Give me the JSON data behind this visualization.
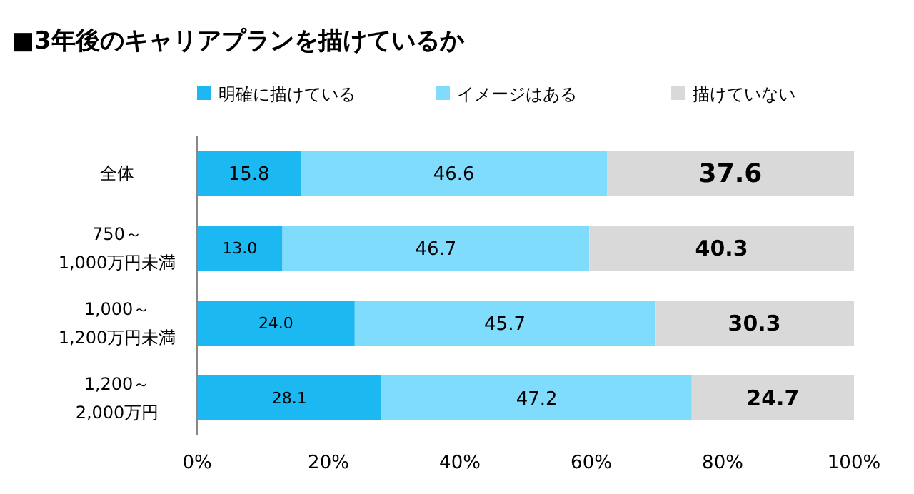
{
  "chart_data": {
    "type": "bar",
    "orientation": "horizontal",
    "stacked": true,
    "title": "■3年後のキャリアプランを描けているか",
    "categories": [
      "全体",
      "750～\n1,000万円未満",
      "1,000～\n1,200万円未満",
      "1,200～\n2,000万円"
    ],
    "series": [
      {
        "name": "明確に描けている",
        "color": "#1cb8f2",
        "values": [
          15.8,
          13,
          24,
          28.1
        ],
        "value_labels": [
          "15.8",
          "13.0",
          "24.0",
          "28.1"
        ]
      },
      {
        "name": "イメージはある",
        "color": "#80dcfc",
        "values": [
          46.6,
          46.7,
          45.7,
          47.2
        ],
        "value_labels": [
          "46.6",
          "46.7",
          "45.7",
          "47.2"
        ]
      },
      {
        "name": "描けていない",
        "color": "#d9d9d9",
        "values": [
          37.6,
          40.3,
          30.3,
          24.7
        ],
        "value_labels": [
          "37.6",
          "40.3",
          "30.3",
          "24.7"
        ]
      }
    ],
    "xlim": [
      0,
      100
    ],
    "xticks": [
      {
        "value": 0,
        "label": "0%"
      },
      {
        "value": 20,
        "label": "20%"
      },
      {
        "value": 40,
        "label": "40%"
      },
      {
        "value": 60,
        "label": "60%"
      },
      {
        "value": 80,
        "label": "80%"
      },
      {
        "value": 100,
        "label": "100%"
      }
    ],
    "legend": "top"
  }
}
